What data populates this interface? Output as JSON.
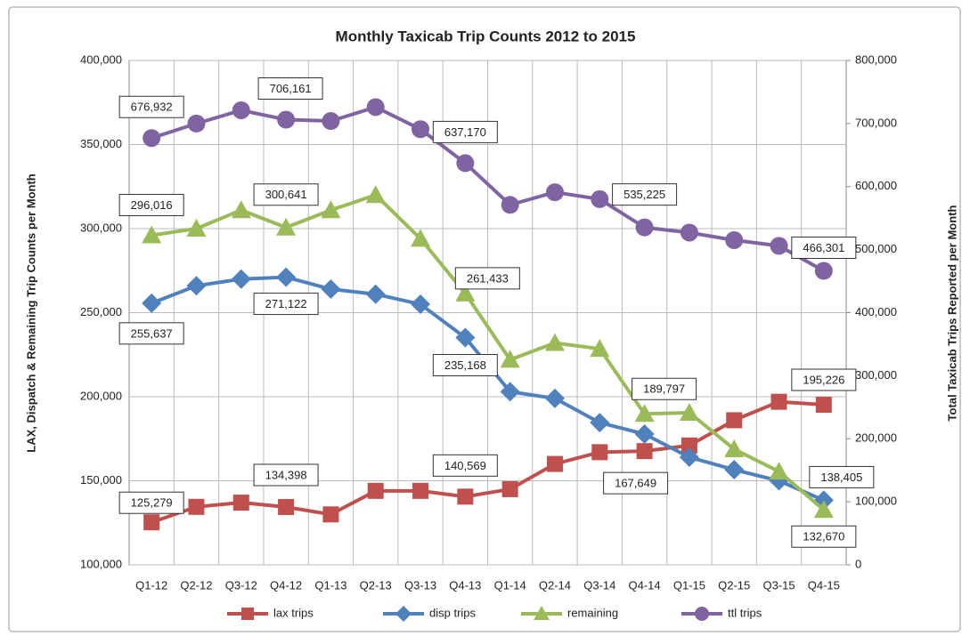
{
  "chart_data": {
    "type": "line",
    "title": "Monthly Taxicab Trip Counts 2012 to 2015",
    "y_label": "LAX, Dispatch & Remaining Trip Counts per Month",
    "y2_label": "Total Taxicab Trips Reported per Month",
    "categories": [
      "Q1-12",
      "Q2-12",
      "Q3-12",
      "Q4-12",
      "Q1-13",
      "Q2-13",
      "Q3-13",
      "Q4-13",
      "Q1-14",
      "Q2-14",
      "Q3-14",
      "Q4-14",
      "Q1-15",
      "Q2-15",
      "Q3-15",
      "Q4-15"
    ],
    "ylim": [
      100000,
      400000
    ],
    "yticks": [
      {
        "value": 100000,
        "label": "100,000"
      },
      {
        "value": 150000,
        "label": "150,000"
      },
      {
        "value": 200000,
        "label": "200,000"
      },
      {
        "value": 250000,
        "label": "250,000"
      },
      {
        "value": 300000,
        "label": "300,000"
      },
      {
        "value": 350000,
        "label": "350,000"
      },
      {
        "value": 400000,
        "label": "400,000"
      }
    ],
    "y2lim": [
      0,
      800000
    ],
    "y2ticks": [
      0,
      {
        "value": 100000,
        "label": "100,000"
      },
      {
        "value": 200000,
        "label": "200,000"
      },
      {
        "value": 300000,
        "label": "300,000"
      },
      {
        "value": 400000,
        "label": "400,000"
      },
      {
        "value": 500000,
        "label": "500,000"
      },
      {
        "value": 600000,
        "label": "600,000"
      },
      {
        "value": 700000,
        "label": "700,000"
      },
      {
        "value": 800000,
        "label": "800,000"
      }
    ],
    "grid": true,
    "legend": "bottom",
    "series": [
      {
        "name": "lax trips",
        "color": "#c0504d",
        "marker": "square",
        "values": [
          125279,
          134500,
          137000,
          134398,
          130000,
          144000,
          144000,
          140569,
          145000,
          160000,
          167000,
          167649,
          171000,
          186000,
          197000,
          195226
        ],
        "value_labels": [
          "125,279",
          null,
          null,
          "134,398",
          null,
          null,
          null,
          "140,569",
          null,
          null,
          null,
          "167,649",
          null,
          null,
          null,
          "195,226"
        ]
      },
      {
        "name": "disp trips",
        "color": "#4f81bd",
        "marker": "diamond",
        "values": [
          255637,
          266000,
          270000,
          271122,
          264000,
          261000,
          255000,
          235168,
          203000,
          199000,
          184600,
          177800,
          164000,
          156600,
          150000,
          138405
        ],
        "value_labels": [
          "255,637",
          null,
          null,
          "271,122",
          null,
          null,
          null,
          "235,168",
          null,
          null,
          null,
          null,
          null,
          null,
          null,
          "138,405"
        ]
      },
      {
        "name": "remaining",
        "color": "#9bbb59",
        "marker": "triangle",
        "values": [
          296016,
          300000,
          311000,
          300641,
          311000,
          320000,
          294000,
          261433,
          222000,
          232000,
          228500,
          189797,
          190500,
          168800,
          155500,
          132670
        ],
        "value_labels": [
          "296,016",
          null,
          null,
          "300,641",
          null,
          null,
          null,
          "261,433",
          null,
          null,
          null,
          "189,797",
          null,
          null,
          null,
          "132,670"
        ]
      },
      {
        "name": "ttl trips",
        "color": "#8064a2",
        "marker": "circle",
        "axis": "y2",
        "values": [
          676932,
          700000,
          721000,
          706161,
          704000,
          726000,
          691000,
          637170,
          571000,
          591000,
          580000,
          535225,
          527000,
          515000,
          506000,
          466301
        ],
        "value_labels": [
          "676,932",
          null,
          null,
          "706,161",
          null,
          null,
          null,
          "637,170",
          null,
          null,
          null,
          "535,225",
          null,
          null,
          null,
          "466,301"
        ]
      }
    ]
  }
}
